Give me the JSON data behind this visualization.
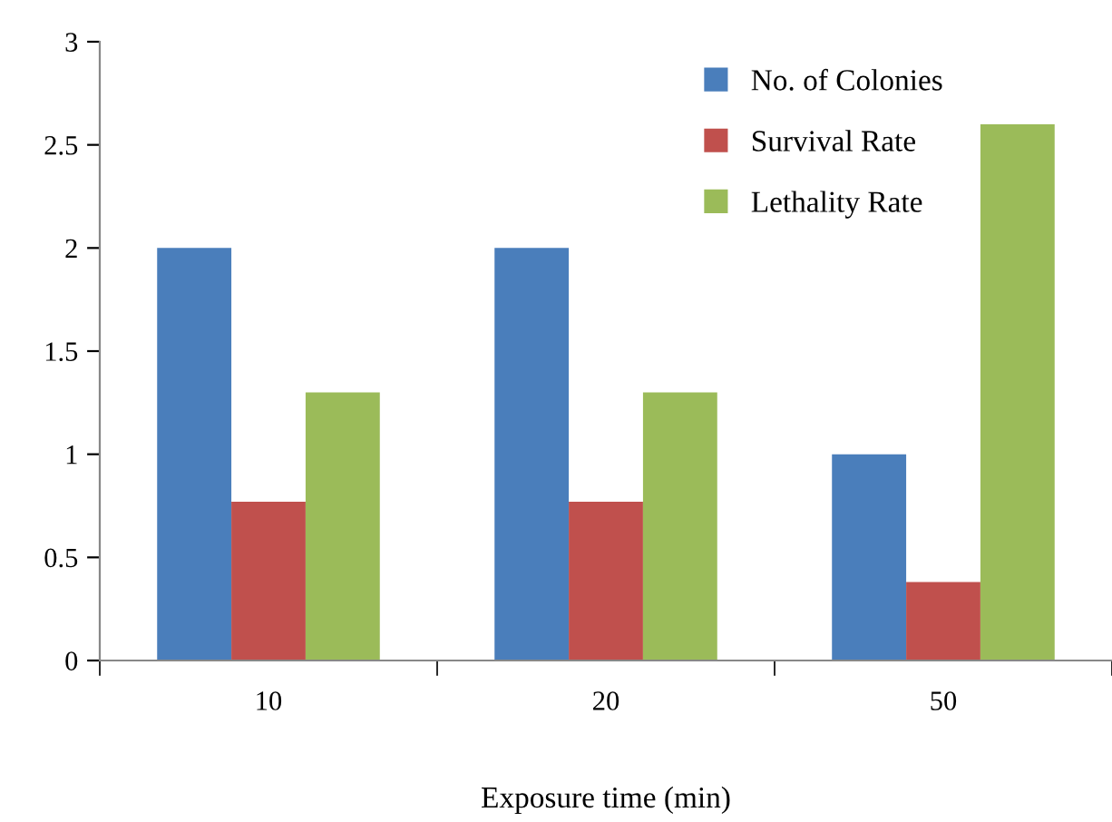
{
  "chart_data": {
    "type": "bar",
    "xlabel": "Exposure time (min)",
    "categories": [
      "10",
      "20",
      "50"
    ],
    "series": [
      {
        "name": "No. of Colonies",
        "color": "#4a7ebb",
        "values": [
          2,
          2,
          1
        ]
      },
      {
        "name": "Survival Rate",
        "color": "#c0504d",
        "values": [
          0.77,
          0.77,
          0.38
        ]
      },
      {
        "name": "Lethality Rate",
        "color": "#9bbb59",
        "values": [
          1.3,
          1.3,
          2.6
        ]
      }
    ],
    "ylim": [
      0,
      3
    ],
    "yticks": [
      0,
      0.5,
      1,
      1.5,
      2,
      2.5,
      3
    ],
    "grid": false,
    "legend": "top right"
  }
}
